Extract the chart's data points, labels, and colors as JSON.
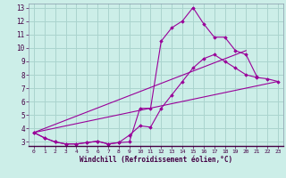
{
  "xlabel": "Windchill (Refroidissement éolien,°C)",
  "background_color": "#cceee8",
  "grid_color": "#aad4ce",
  "line_color": "#990099",
  "xlim": [
    -0.5,
    23.5
  ],
  "ylim": [
    2.7,
    13.3
  ],
  "xticks": [
    0,
    1,
    2,
    3,
    4,
    5,
    6,
    7,
    8,
    9,
    10,
    11,
    12,
    13,
    14,
    15,
    16,
    17,
    18,
    19,
    20,
    21,
    22,
    23
  ],
  "yticks": [
    3,
    4,
    5,
    6,
    7,
    8,
    9,
    10,
    11,
    12,
    13
  ],
  "line1_x": [
    0,
    1,
    2,
    3,
    4,
    5,
    6,
    7,
    8,
    9,
    10,
    11,
    12,
    13,
    14,
    15,
    16,
    17,
    18,
    19,
    20,
    21
  ],
  "line1_y": [
    3.7,
    3.3,
    3.0,
    2.85,
    2.85,
    2.95,
    3.05,
    2.85,
    2.95,
    3.0,
    5.5,
    5.5,
    10.5,
    11.5,
    12.0,
    13.0,
    11.8,
    10.8,
    10.8,
    9.8,
    9.5,
    7.9
  ],
  "line2_x": [
    0,
    1,
    2,
    3,
    4,
    5,
    6,
    7,
    8,
    9,
    10,
    11,
    12,
    13,
    14,
    15,
    16,
    17,
    18,
    19,
    20,
    21,
    22,
    23
  ],
  "line2_y": [
    3.7,
    3.3,
    3.0,
    2.85,
    2.85,
    2.95,
    3.05,
    2.85,
    2.95,
    3.5,
    4.2,
    4.1,
    5.5,
    6.5,
    7.5,
    8.5,
    9.2,
    9.5,
    9.0,
    8.5,
    8.0,
    7.8,
    7.7,
    7.5
  ],
  "line3_x": [
    0,
    23
  ],
  "line3_y": [
    3.7,
    7.5
  ],
  "line4_x": [
    0,
    20
  ],
  "line4_y": [
    3.7,
    9.8
  ]
}
